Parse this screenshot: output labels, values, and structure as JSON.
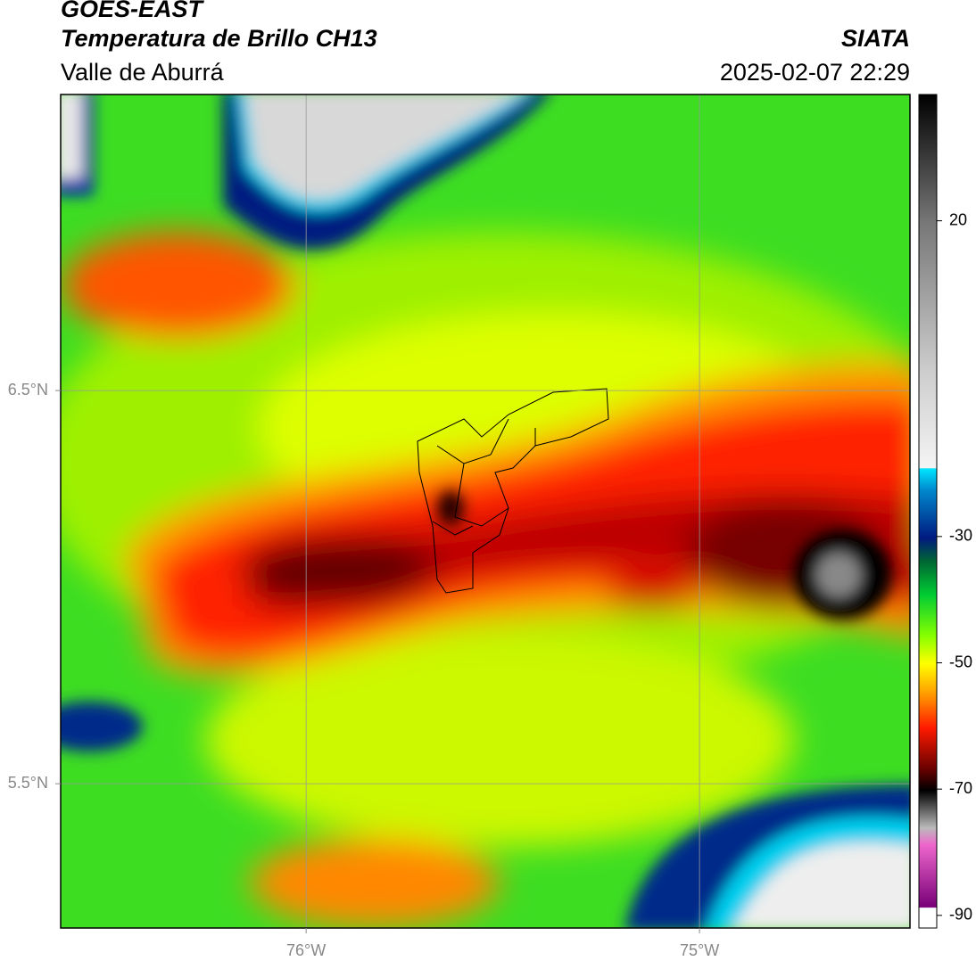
{
  "header": {
    "title": "GOES-EAST",
    "subtitle": "Temperatura de Brillo CH13",
    "region": "Valle de Aburrá",
    "source": "SIATA",
    "datetime": "2025-02-07 22:29"
  },
  "map": {
    "xlim": [
      -76.624,
      -74.465
    ],
    "ylim": [
      5.133,
      7.253
    ],
    "xticks": [
      {
        "value": -76,
        "label": "76°W"
      },
      {
        "value": -75,
        "label": "75°W"
      }
    ],
    "yticks": [
      {
        "value": 6.5,
        "label": "6.5°N"
      },
      {
        "value": 5.5,
        "label": "5.5°N"
      }
    ],
    "grid": true
  },
  "colorbar": {
    "lim": [
      -92,
      40
    ],
    "ticks": [
      20,
      -30,
      -50,
      -70,
      -90
    ]
  }
}
